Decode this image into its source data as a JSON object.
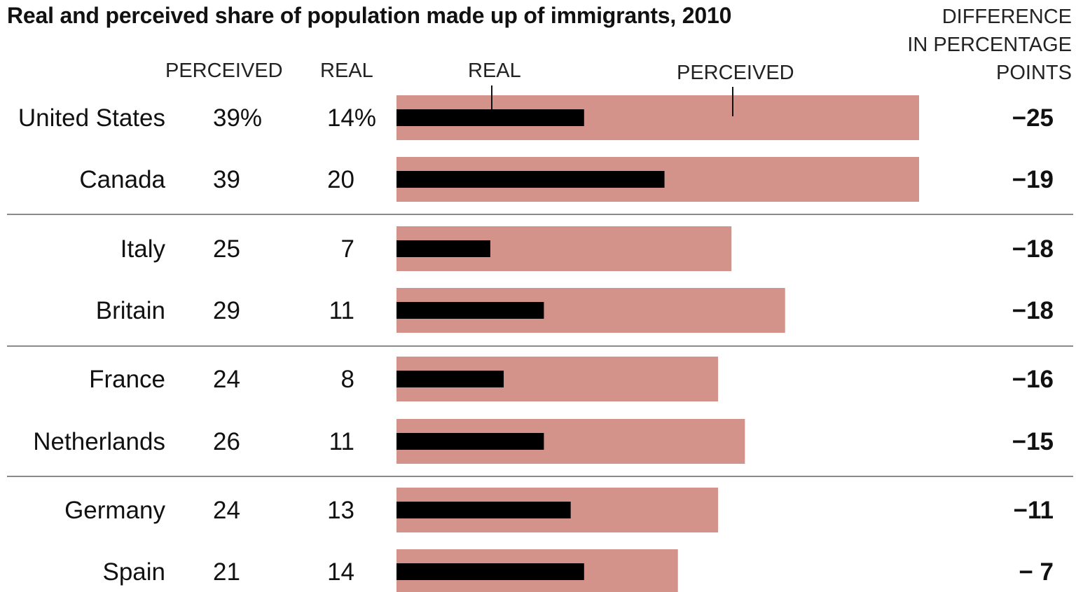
{
  "chart_data": {
    "type": "bar",
    "title": "Real and perceived share of population made up of immigrants, 2010",
    "column_headers": {
      "perceived": "PERCEIVED",
      "real": "REAL",
      "diff_line1": "DIFFERENCE",
      "diff_line2": "IN PERCENTAGE",
      "diff_line3": "POINTS"
    },
    "legend": {
      "real": "REAL",
      "perceived": "PERCEIVED"
    },
    "colors": {
      "perceived": "#d3928a",
      "real": "#000000",
      "divider": "#8a8a8a"
    },
    "xlim": [
      0,
      39
    ],
    "rows": [
      {
        "country": "United States",
        "perceived": 39,
        "real": 14,
        "perceived_label": "39%",
        "real_label": "14%",
        "diff_label": "−25"
      },
      {
        "country": "Canada",
        "perceived": 39,
        "real": 20,
        "perceived_label": "39",
        "real_label": "20",
        "diff_label": "−19"
      },
      {
        "country": "Italy",
        "perceived": 25,
        "real": 7,
        "perceived_label": "25",
        "real_label": "7",
        "diff_label": "−18"
      },
      {
        "country": "Britain",
        "perceived": 29,
        "real": 11,
        "perceived_label": "29",
        "real_label": "11",
        "diff_label": "−18"
      },
      {
        "country": "France",
        "perceived": 24,
        "real": 8,
        "perceived_label": "24",
        "real_label": "8",
        "diff_label": "−16"
      },
      {
        "country": "Netherlands",
        "perceived": 26,
        "real": 11,
        "perceived_label": "26",
        "real_label": "11",
        "diff_label": "−15"
      },
      {
        "country": "Germany",
        "perceived": 24,
        "real": 13,
        "perceived_label": "24",
        "real_label": "13",
        "diff_label": "−11"
      },
      {
        "country": "Spain",
        "perceived": 21,
        "real": 14,
        "perceived_label": "21",
        "real_label": "14",
        "diff_label": "− 7"
      }
    ]
  }
}
